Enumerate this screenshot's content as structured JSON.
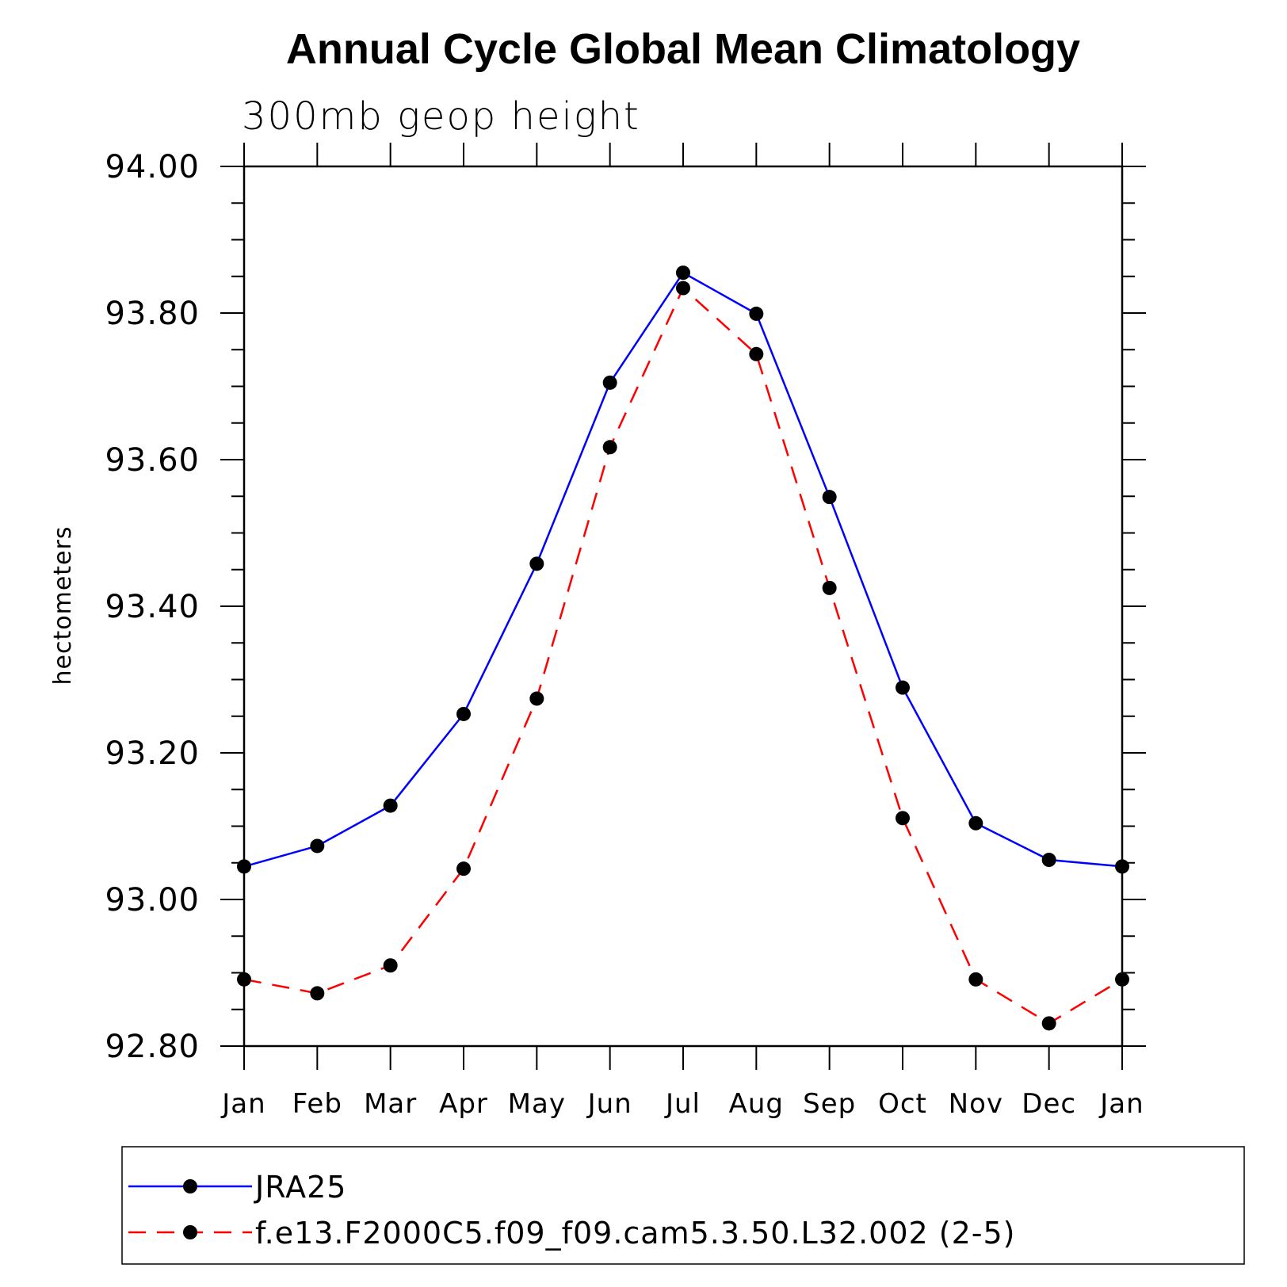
{
  "chart_data": {
    "type": "line",
    "title": "Annual Cycle Global Mean Climatology",
    "subtitle": "300mb geop height",
    "ylabel": "hectometers",
    "xlabel": "",
    "categories": [
      "Jan",
      "Feb",
      "Mar",
      "Apr",
      "May",
      "Jun",
      "Jul",
      "Aug",
      "Sep",
      "Oct",
      "Nov",
      "Dec",
      "Jan"
    ],
    "ylim": [
      92.8,
      94.0
    ],
    "yticks": [
      "92.80",
      "93.00",
      "93.20",
      "93.40",
      "93.60",
      "93.80",
      "94.00"
    ],
    "series": [
      {
        "name": "JRA25",
        "color": "#0000ff",
        "dash": "solid",
        "marker": "filled-circle",
        "values": [
          93.045,
          93.073,
          93.128,
          93.253,
          93.458,
          93.705,
          93.855,
          93.799,
          93.549,
          93.289,
          93.104,
          93.054,
          93.045
        ]
      },
      {
        "name": "f.e13.F2000C5.f09_f09.cam5.3.50.L32.002 (2-5)",
        "color": "#ff0000",
        "dash": "dashed",
        "marker": "filled-circle",
        "values": [
          92.891,
          92.872,
          92.91,
          93.042,
          93.274,
          93.617,
          93.834,
          93.744,
          93.425,
          93.111,
          92.891,
          92.831,
          92.891
        ]
      }
    ],
    "legend_position": "bottom"
  }
}
